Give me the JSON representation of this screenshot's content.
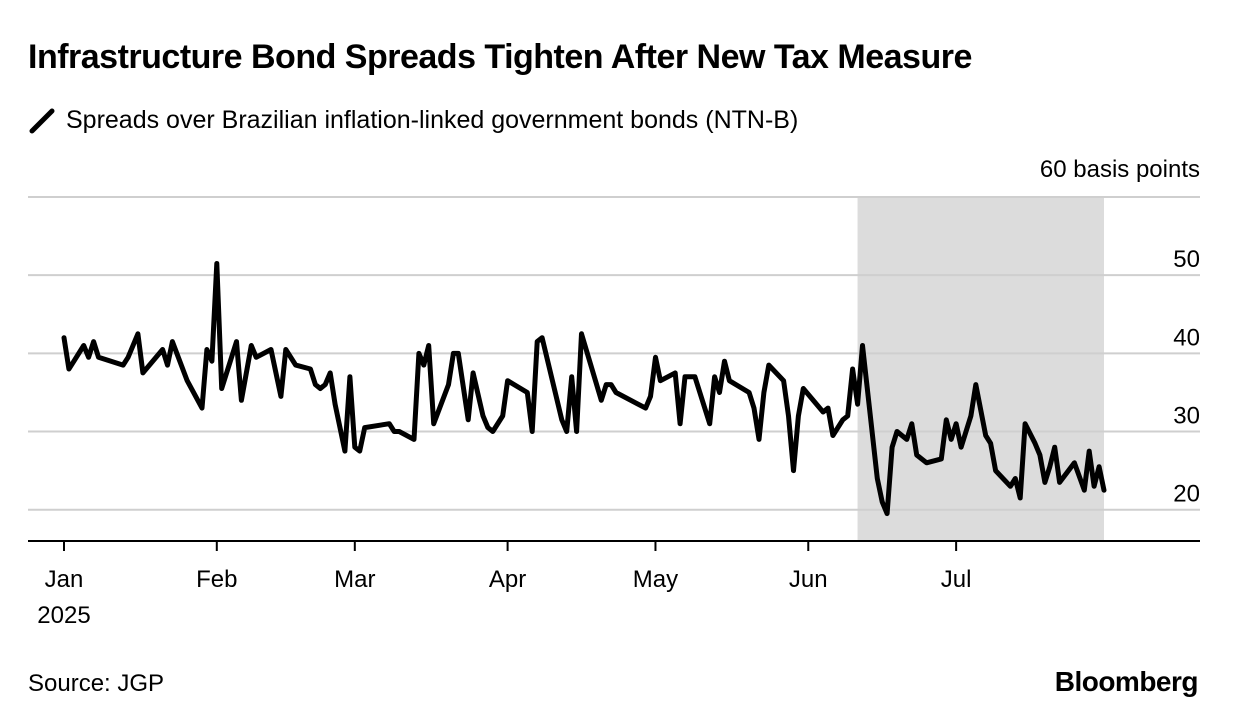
{
  "title": "Infrastructure Bond Spreads Tighten After New Tax Measure",
  "legend": {
    "label": "Spreads over Brazilian inflation-linked government bonds (NTN-B)",
    "color": "#000000"
  },
  "source": "Source: JGP",
  "brand": "Bloomberg",
  "chart_data": {
    "type": "line",
    "unit_label": "60 basis points",
    "ylim": [
      16,
      60
    ],
    "y_ticks": [
      20,
      30,
      40,
      50
    ],
    "y_axis_side": "right",
    "grid": true,
    "x_range": [
      "2025-01-01",
      "2025-07-31"
    ],
    "x_ticks": [
      {
        "date": "2025-01-01",
        "label": "Jan",
        "sublabel": "2025"
      },
      {
        "date": "2025-02-01",
        "label": "Feb"
      },
      {
        "date": "2025-03-01",
        "label": "Mar"
      },
      {
        "date": "2025-04-01",
        "label": "Apr"
      },
      {
        "date": "2025-05-01",
        "label": "May"
      },
      {
        "date": "2025-06-01",
        "label": "Jun"
      },
      {
        "date": "2025-07-01",
        "label": "Jul"
      }
    ],
    "shaded_period": {
      "start": "2025-06-11",
      "end": "2025-07-31",
      "color": "#dcdcdc"
    },
    "series": [
      {
        "color": "#000000",
        "points": [
          [
            "2025-01-01",
            42
          ],
          [
            "2025-01-02",
            38
          ],
          [
            "2025-01-03",
            39
          ],
          [
            "2025-01-05",
            41
          ],
          [
            "2025-01-06",
            39.5
          ],
          [
            "2025-01-07",
            41.5
          ],
          [
            "2025-01-08",
            39.5
          ],
          [
            "2025-01-13",
            38.5
          ],
          [
            "2025-01-14",
            39.5
          ],
          [
            "2025-01-16",
            42.5
          ],
          [
            "2025-01-17",
            37.5
          ],
          [
            "2025-01-21",
            40.5
          ],
          [
            "2025-01-22",
            38.5
          ],
          [
            "2025-01-23",
            41.5
          ],
          [
            "2025-01-26",
            36.5
          ],
          [
            "2025-01-29",
            33
          ],
          [
            "2025-01-30",
            40.5
          ],
          [
            "2025-01-31",
            39
          ],
          [
            "2025-02-01",
            51.5
          ],
          [
            "2025-02-02",
            35.5
          ],
          [
            "2025-02-05",
            41.5
          ],
          [
            "2025-02-06",
            34
          ],
          [
            "2025-02-08",
            41
          ],
          [
            "2025-02-09",
            39.5
          ],
          [
            "2025-02-12",
            40.5
          ],
          [
            "2025-02-14",
            34.5
          ],
          [
            "2025-02-15",
            40.5
          ],
          [
            "2025-02-17",
            38.5
          ],
          [
            "2025-02-20",
            38
          ],
          [
            "2025-02-21",
            36
          ],
          [
            "2025-02-22",
            35.5
          ],
          [
            "2025-02-23",
            36
          ],
          [
            "2025-02-24",
            37.5
          ],
          [
            "2025-02-25",
            33.5
          ],
          [
            "2025-02-27",
            27.5
          ],
          [
            "2025-02-28",
            37
          ],
          [
            "2025-03-01",
            28
          ],
          [
            "2025-03-02",
            27.5
          ],
          [
            "2025-03-03",
            30.5
          ],
          [
            "2025-03-08",
            31
          ],
          [
            "2025-03-09",
            30
          ],
          [
            "2025-03-10",
            30
          ],
          [
            "2025-03-13",
            29
          ],
          [
            "2025-03-14",
            40
          ],
          [
            "2025-03-15",
            38.5
          ],
          [
            "2025-03-16",
            41
          ],
          [
            "2025-03-17",
            31
          ],
          [
            "2025-03-20",
            36
          ],
          [
            "2025-03-21",
            40
          ],
          [
            "2025-03-22",
            40
          ],
          [
            "2025-03-24",
            31.5
          ],
          [
            "2025-03-25",
            37.5
          ],
          [
            "2025-03-27",
            32
          ],
          [
            "2025-03-28",
            30.5
          ],
          [
            "2025-03-29",
            30
          ],
          [
            "2025-03-31",
            32
          ],
          [
            "2025-04-01",
            36.5
          ],
          [
            "2025-04-05",
            35
          ],
          [
            "2025-04-06",
            30
          ],
          [
            "2025-04-07",
            41.5
          ],
          [
            "2025-04-08",
            42
          ],
          [
            "2025-04-12",
            31.5
          ],
          [
            "2025-04-13",
            30
          ],
          [
            "2025-04-14",
            37
          ],
          [
            "2025-04-15",
            30
          ],
          [
            "2025-04-16",
            42.5
          ],
          [
            "2025-04-20",
            34
          ],
          [
            "2025-04-21",
            36
          ],
          [
            "2025-04-22",
            36
          ],
          [
            "2025-04-23",
            35
          ],
          [
            "2025-04-29",
            33
          ],
          [
            "2025-04-30",
            34.5
          ],
          [
            "2025-05-01",
            39.5
          ],
          [
            "2025-05-02",
            36.5
          ],
          [
            "2025-05-05",
            37.5
          ],
          [
            "2025-05-06",
            31
          ],
          [
            "2025-05-07",
            37
          ],
          [
            "2025-05-09",
            37
          ],
          [
            "2025-05-12",
            31
          ],
          [
            "2025-05-13",
            37
          ],
          [
            "2025-05-14",
            35
          ],
          [
            "2025-05-15",
            39
          ],
          [
            "2025-05-16",
            36.5
          ],
          [
            "2025-05-20",
            35
          ],
          [
            "2025-05-21",
            33
          ],
          [
            "2025-05-22",
            29
          ],
          [
            "2025-05-23",
            35
          ],
          [
            "2025-05-24",
            38.5
          ],
          [
            "2025-05-27",
            36.5
          ],
          [
            "2025-05-28",
            32
          ],
          [
            "2025-05-29",
            25
          ],
          [
            "2025-05-30",
            32
          ],
          [
            "2025-05-31",
            35.5
          ],
          [
            "2025-06-04",
            32.5
          ],
          [
            "2025-06-05",
            33
          ],
          [
            "2025-06-06",
            29.5
          ],
          [
            "2025-06-08",
            31.5
          ],
          [
            "2025-06-09",
            32
          ],
          [
            "2025-06-10",
            38
          ],
          [
            "2025-06-11",
            33.5
          ],
          [
            "2025-06-12",
            41
          ],
          [
            "2025-06-15",
            24
          ],
          [
            "2025-06-16",
            21
          ],
          [
            "2025-06-17",
            19.5
          ],
          [
            "2025-06-18",
            28
          ],
          [
            "2025-06-19",
            30
          ],
          [
            "2025-06-21",
            29
          ],
          [
            "2025-06-22",
            31
          ],
          [
            "2025-06-23",
            27
          ],
          [
            "2025-06-25",
            26
          ],
          [
            "2025-06-28",
            26.5
          ],
          [
            "2025-06-29",
            31.5
          ],
          [
            "2025-06-30",
            29
          ],
          [
            "2025-07-01",
            31
          ],
          [
            "2025-07-02",
            28
          ],
          [
            "2025-07-04",
            32
          ],
          [
            "2025-07-05",
            36
          ],
          [
            "2025-07-07",
            29.5
          ],
          [
            "2025-07-08",
            28.5
          ],
          [
            "2025-07-09",
            25
          ],
          [
            "2025-07-12",
            23
          ],
          [
            "2025-07-13",
            24
          ],
          [
            "2025-07-14",
            21.5
          ],
          [
            "2025-07-15",
            31
          ],
          [
            "2025-07-17",
            28.5
          ],
          [
            "2025-07-18",
            27
          ],
          [
            "2025-07-19",
            23.5
          ],
          [
            "2025-07-20",
            25.5
          ],
          [
            "2025-07-21",
            28
          ],
          [
            "2025-07-22",
            23.5
          ],
          [
            "2025-07-25",
            26
          ],
          [
            "2025-07-27",
            22.5
          ],
          [
            "2025-07-28",
            27.5
          ],
          [
            "2025-07-29",
            23
          ],
          [
            "2025-07-30",
            25.5
          ],
          [
            "2025-07-31",
            22.5
          ]
        ]
      }
    ]
  }
}
